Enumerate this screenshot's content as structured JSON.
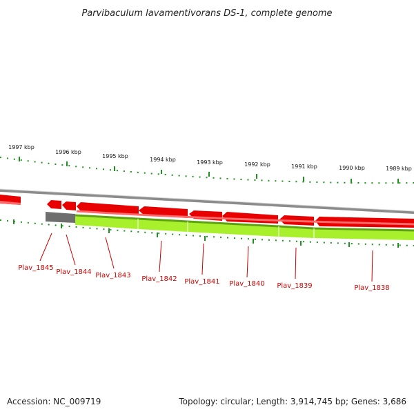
{
  "title": "Parvibaculum lavamentivorans DS-1, complete genome",
  "accession": "Accession: NC_009719",
  "summary": "Topology: circular; Length: 3,914,745 bp; Genes: 3,686",
  "ticks": [
    {
      "label": "1997 kbp"
    },
    {
      "label": "1996 kbp"
    },
    {
      "label": "1995 kbp"
    },
    {
      "label": "1994 kbp"
    },
    {
      "label": "1993 kbp"
    },
    {
      "label": "1992 kbp"
    },
    {
      "label": "1991 kbp"
    },
    {
      "label": "1990 kbp"
    },
    {
      "label": "1989 kbp"
    }
  ],
  "genes": [
    {
      "label": "Plav_1845"
    },
    {
      "label": "Plav_1844"
    },
    {
      "label": "Plav_1843"
    },
    {
      "label": "Plav_1842"
    },
    {
      "label": "Plav_1841"
    },
    {
      "label": "Plav_1840"
    },
    {
      "label": "Plav_1839"
    },
    {
      "label": "Plav_1838"
    }
  ],
  "colors": {
    "gene_red": "#e80000",
    "gene_red_light": "#ff6a6a",
    "backbone": "#8c8c8c",
    "gc_green": "#a8ef2c",
    "gc_dark_green": "#5ea214",
    "tick_green": "#1f8f1f",
    "label_red": "#cc0000"
  }
}
